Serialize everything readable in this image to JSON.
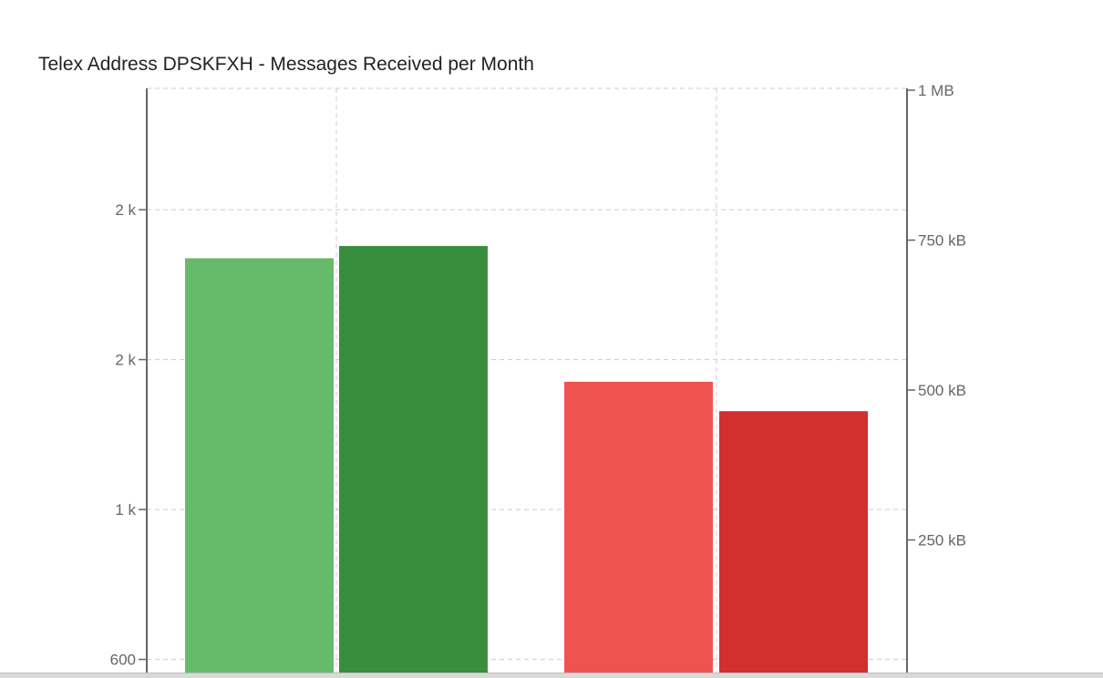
{
  "chart_data": {
    "type": "bar",
    "title": "Telex Address DPSKFXH - Messages Received per Month",
    "categories": [
      "",
      ""
    ],
    "series": [
      {
        "values": [
          1938,
          1979
        ],
        "axis": "left",
        "colors": [
          "#66bb6a",
          "#388e3c"
        ]
      },
      {
        "values": [
          1526,
          1428
        ],
        "axis": "left",
        "colors": [
          "#ef5350",
          "#d32f2f"
        ]
      }
    ],
    "left_axis": {
      "ticks": [
        {
          "value": 600,
          "label": "600"
        },
        {
          "value": 1100,
          "label": "1 k"
        },
        {
          "value": 1600,
          "label": "2 k"
        },
        {
          "value": 2100,
          "label": "2 k"
        }
      ]
    },
    "right_axis": {
      "ticks": [
        {
          "value": 250,
          "label": "250 kB"
        },
        {
          "value": 500,
          "label": "500 kB"
        },
        {
          "value": 750,
          "label": "750 kB"
        },
        {
          "value": 1000,
          "label": "1 MB"
        }
      ]
    },
    "grid": true,
    "legend": "none"
  }
}
